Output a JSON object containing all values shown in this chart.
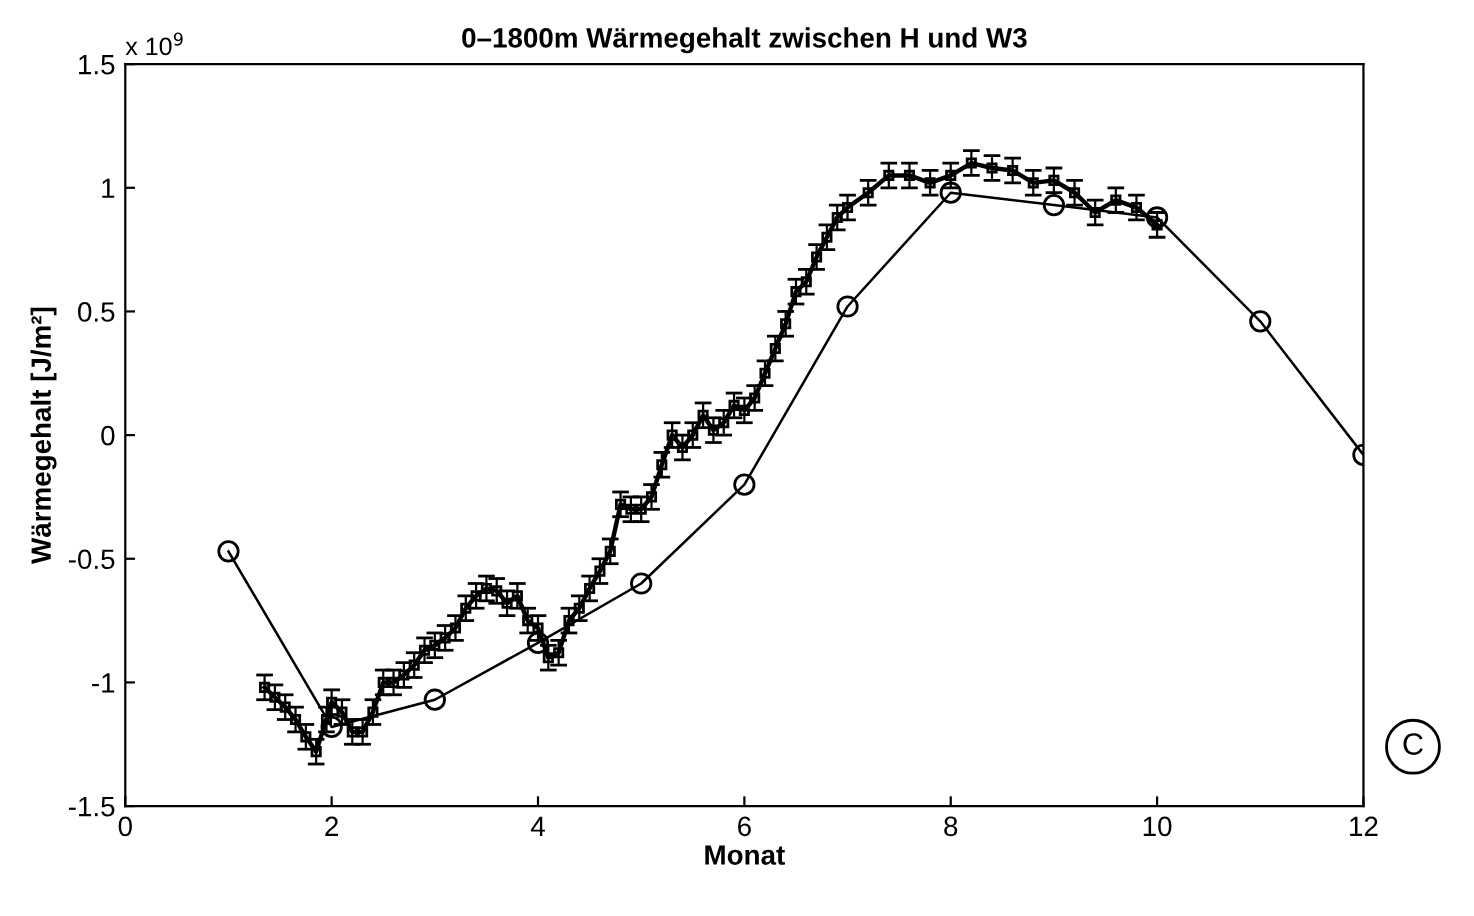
{
  "chart_data": {
    "type": "line",
    "title": "0–1800m Wärmegehalt zwischen H und W3",
    "xlabel": "Monat",
    "ylabel": "Wärmegehalt [J/m²]",
    "annotations": [
      "x 10$^{9}$",
      "C"
    ],
    "xlim": [
      0,
      12
    ],
    "ylim": [
      -1.5,
      1.5
    ],
    "xticks": [
      0,
      2,
      4,
      6,
      8,
      10,
      12
    ],
    "yticks": [
      -1.5,
      -1,
      -0.5,
      0,
      0.5,
      1,
      1.5
    ],
    "grid": false,
    "legend": false,
    "series": [
      {
        "color": "#000000",
        "marker": "square",
        "x": [
          1.35,
          1.45,
          1.55,
          1.65,
          1.75,
          1.85,
          1.95,
          2.0,
          2.1,
          2.2,
          2.3,
          2.4,
          2.5,
          2.6,
          2.7,
          2.8,
          2.9,
          3.0,
          3.1,
          3.2,
          3.3,
          3.4,
          3.5,
          3.6,
          3.7,
          3.8,
          3.9,
          4.0,
          4.1,
          4.2,
          4.3,
          4.4,
          4.5,
          4.6,
          4.7,
          4.8,
          4.9,
          5.0,
          5.1,
          5.2,
          5.3,
          5.4,
          5.5,
          5.6,
          5.7,
          5.8,
          5.9,
          6.0,
          6.1,
          6.2,
          6.3,
          6.4,
          6.5,
          6.6,
          6.7,
          6.8,
          6.9,
          7.0,
          7.2,
          7.4,
          7.6,
          7.8,
          8.0,
          8.2,
          8.4,
          8.6,
          8.8,
          9.0,
          9.2,
          9.4,
          9.6,
          9.8,
          10.0
        ],
        "values": [
          -1.02,
          -1.06,
          -1.1,
          -1.15,
          -1.22,
          -1.28,
          -1.15,
          -1.08,
          -1.12,
          -1.2,
          -1.2,
          -1.12,
          -1.0,
          -1.0,
          -0.97,
          -0.93,
          -0.87,
          -0.85,
          -0.82,
          -0.78,
          -0.7,
          -0.65,
          -0.62,
          -0.63,
          -0.68,
          -0.65,
          -0.75,
          -0.78,
          -0.9,
          -0.88,
          -0.75,
          -0.7,
          -0.62,
          -0.55,
          -0.47,
          -0.28,
          -0.3,
          -0.3,
          -0.25,
          -0.12,
          0.0,
          -0.05,
          0.0,
          0.08,
          0.02,
          0.05,
          0.12,
          0.1,
          0.15,
          0.25,
          0.35,
          0.45,
          0.58,
          0.62,
          0.72,
          0.8,
          0.88,
          0.92,
          0.98,
          1.05,
          1.05,
          1.02,
          1.05,
          1.1,
          1.08,
          1.07,
          1.02,
          1.03,
          0.98,
          0.9,
          0.95,
          0.92,
          0.85
        ],
        "errors": [
          0.05,
          0.05,
          0.05,
          0.05,
          0.05,
          0.05,
          0.05,
          0.05,
          0.05,
          0.05,
          0.05,
          0.05,
          0.05,
          0.05,
          0.05,
          0.05,
          0.05,
          0.05,
          0.05,
          0.05,
          0.05,
          0.05,
          0.05,
          0.05,
          0.05,
          0.05,
          0.05,
          0.05,
          0.05,
          0.05,
          0.05,
          0.05,
          0.05,
          0.05,
          0.05,
          0.05,
          0.05,
          0.05,
          0.05,
          0.05,
          0.05,
          0.05,
          0.05,
          0.05,
          0.05,
          0.05,
          0.05,
          0.05,
          0.05,
          0.05,
          0.05,
          0.05,
          0.05,
          0.05,
          0.05,
          0.05,
          0.05,
          0.05,
          0.05,
          0.05,
          0.05,
          0.05,
          0.05,
          0.05,
          0.05,
          0.05,
          0.05,
          0.05,
          0.05,
          0.05,
          0.05,
          0.05,
          0.05
        ]
      },
      {
        "color": "#000000",
        "marker": "circle",
        "x": [
          1,
          2,
          3,
          4,
          5,
          6,
          7,
          8,
          9,
          10,
          11,
          12
        ],
        "values": [
          -0.47,
          -1.18,
          -1.07,
          -0.84,
          -0.6,
          -0.2,
          0.52,
          0.98,
          0.93,
          0.88,
          0.46,
          -0.08
        ]
      }
    ]
  }
}
